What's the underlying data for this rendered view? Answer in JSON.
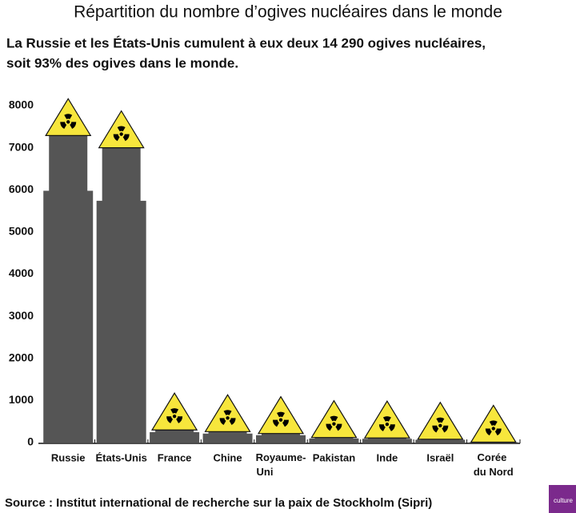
{
  "chart_data": {
    "type": "bar",
    "title": "Répartition du nombre d’ogives nucléaires dans le monde",
    "subtitle": [
      "La Russie et les États-Unis cumulent à eux deux 14 290 ogives nucléaires,",
      "soit 93% des ogives dans le monde."
    ],
    "categories": [
      "Russie",
      "États-Unis",
      "France",
      "Chine",
      "Royaume-Uni",
      "Pakistan",
      "Inde",
      "Israël",
      "Corée du Nord"
    ],
    "values": [
      7290,
      7000,
      300,
      260,
      215,
      120,
      110,
      80,
      10
    ],
    "color": "#555555",
    "cap_color": "#f7e63c",
    "ylim": [
      0,
      8000
    ],
    "yticks": [
      0,
      1000,
      2000,
      3000,
      4000,
      5000,
      6000,
      7000,
      8000
    ],
    "source": "Source : Institut international de recherche sur la paix de Stockholm (Sipri)",
    "logo": "culture"
  }
}
